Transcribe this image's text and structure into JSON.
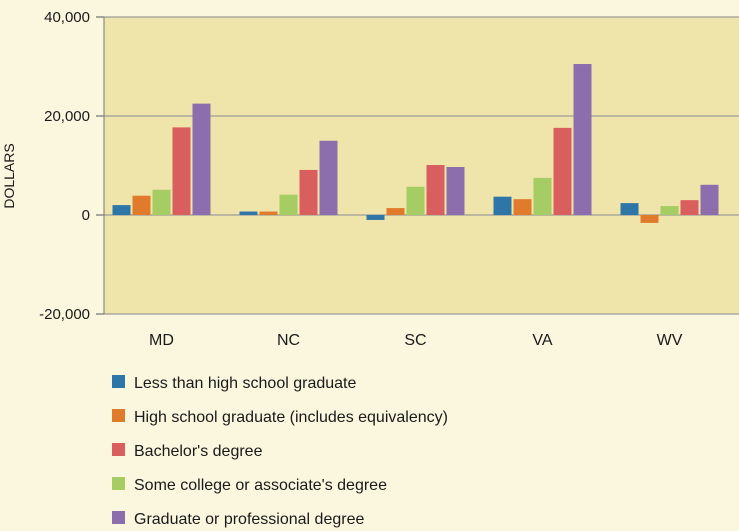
{
  "chart_data": {
    "type": "bar",
    "title": "",
    "xlabel": "",
    "ylabel": "DOLLARS",
    "ylim": [
      -20000,
      40000
    ],
    "yticks": [
      -20000,
      0,
      20000,
      40000
    ],
    "ytick_labels": [
      "-20,000",
      "0",
      "20,000",
      "40,000"
    ],
    "grid": true,
    "legend_position": "bottom",
    "categories": [
      "MD",
      "NC",
      "SC",
      "VA",
      "WV"
    ],
    "series": [
      {
        "name": "Less than high school graduate",
        "color": "#2e75a8",
        "values": [
          2000,
          700,
          -1000,
          3700,
          2400
        ]
      },
      {
        "name": "High school graduate (includes equivalency)",
        "color": "#e07b2c",
        "values": [
          3900,
          700,
          1400,
          3200,
          -1600
        ]
      },
      {
        "name": "Some college or associate's degree",
        "color": "#a6cc64",
        "values": [
          5100,
          4100,
          5700,
          7500,
          1800
        ]
      },
      {
        "name": "Bachelor's degree",
        "color": "#d95f5f",
        "values": [
          17700,
          9100,
          10100,
          17600,
          3000
        ]
      },
      {
        "name": "Graduate or professional degree",
        "color": "#8c6eac",
        "values": [
          22500,
          15000,
          9700,
          30500,
          6100
        ]
      }
    ],
    "legend_order": [
      0,
      1,
      3,
      2,
      4
    ]
  }
}
